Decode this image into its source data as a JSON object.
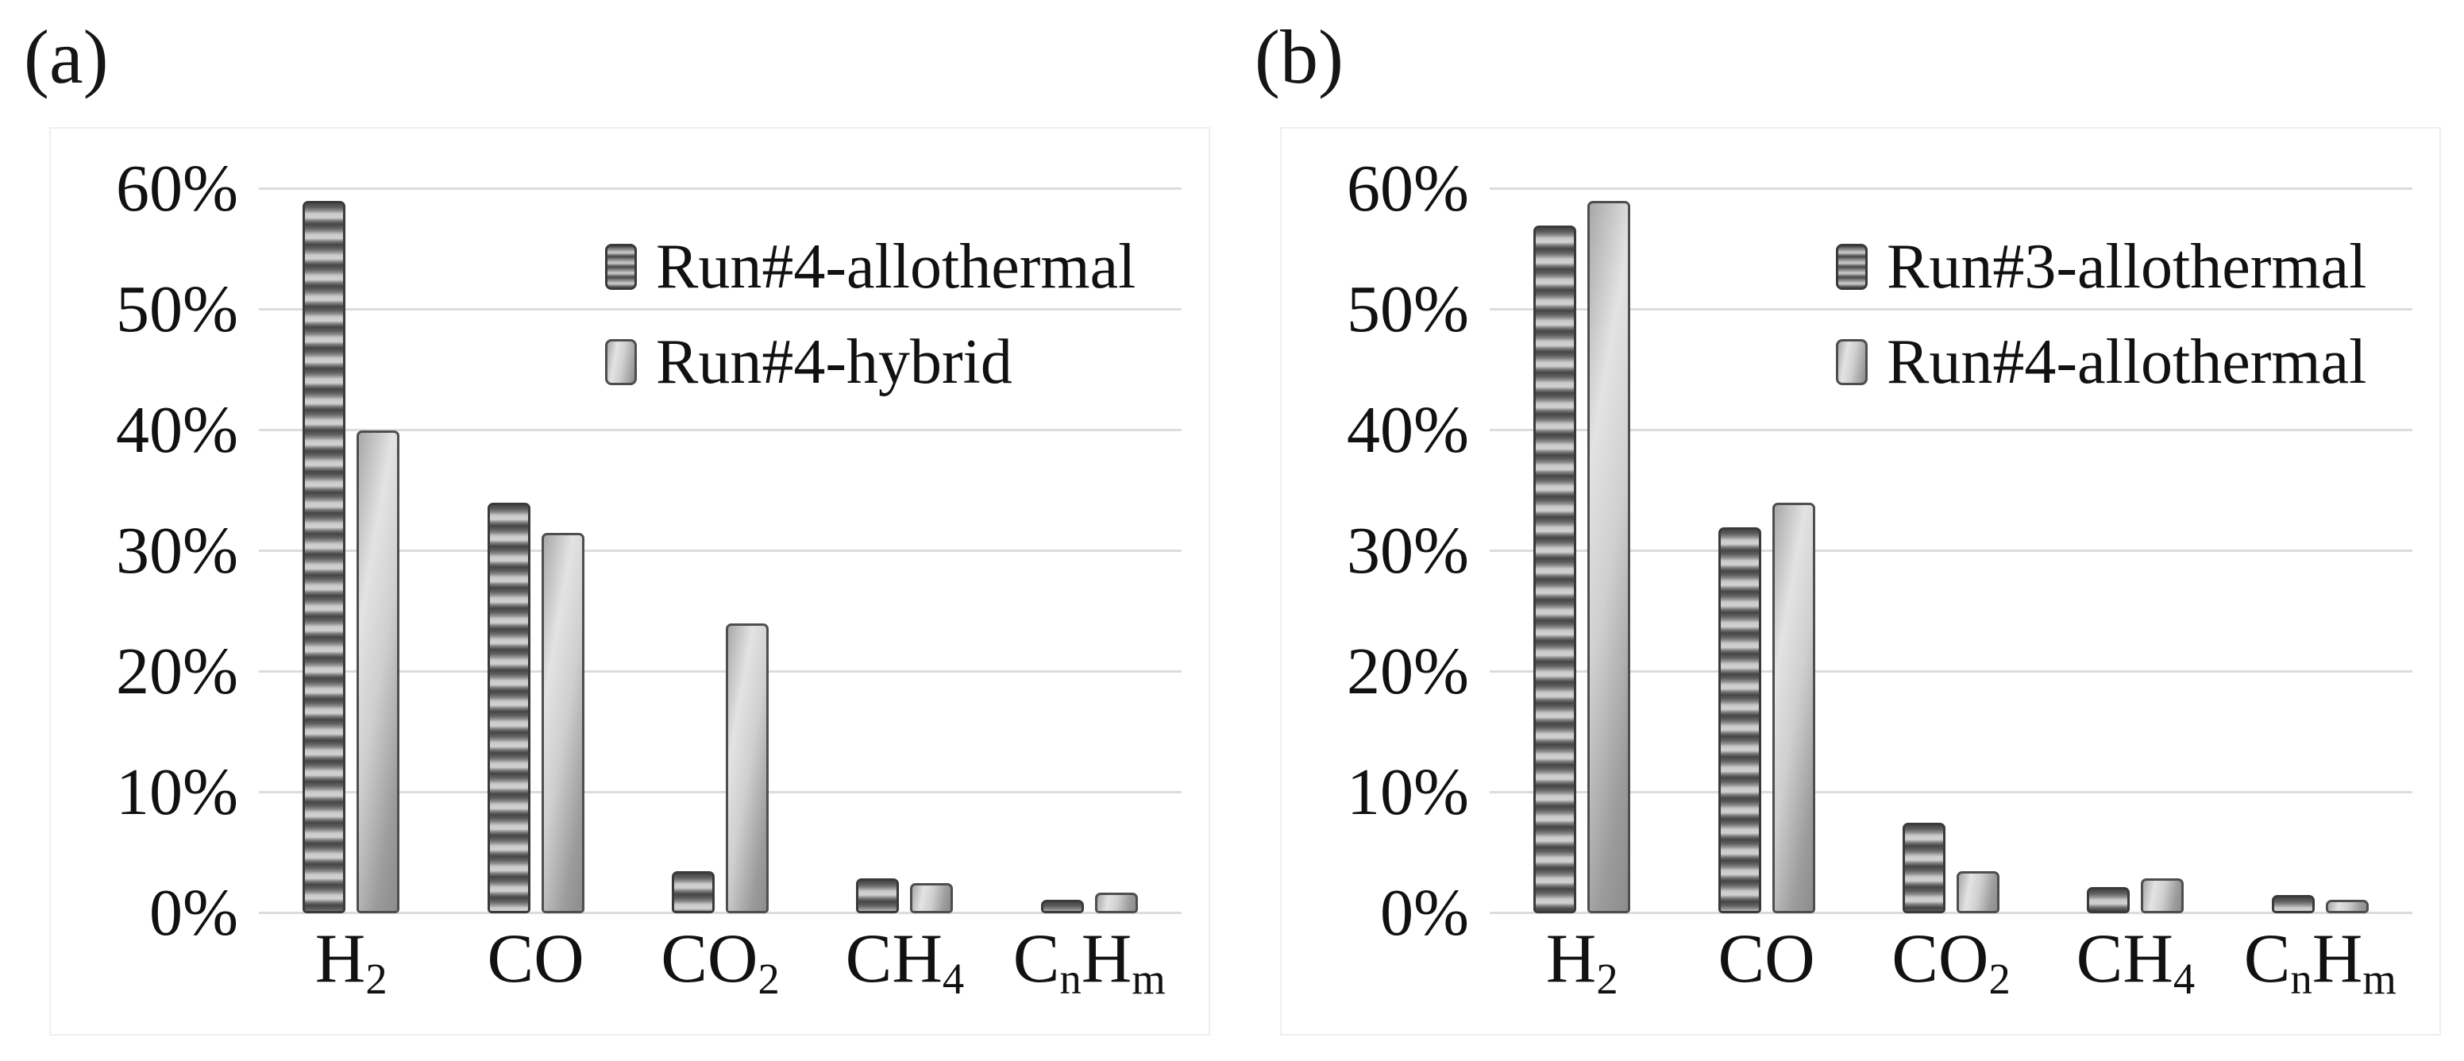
{
  "figure": {
    "background": "#ffffff",
    "text_color": "#111111",
    "gridline_color": "#dcdcdc"
  },
  "chart_data": [
    {
      "type": "bar",
      "panel_label": "(a)",
      "title": "",
      "xlabel": "",
      "ylabel": "",
      "ylim": [
        0,
        60
      ],
      "grid": true,
      "legend_position": "upper-right-inside",
      "y_ticks": [
        "0%",
        "10%",
        "20%",
        "30%",
        "40%",
        "50%",
        "60%"
      ],
      "categories": [
        {
          "name": "H2",
          "parts": [
            {
              "t": "H"
            },
            {
              "t": "2",
              "sub": true
            }
          ]
        },
        {
          "name": "CO",
          "parts": [
            {
              "t": "CO"
            }
          ]
        },
        {
          "name": "CO2",
          "parts": [
            {
              "t": "CO"
            },
            {
              "t": "2",
              "sub": true
            }
          ]
        },
        {
          "name": "CH4",
          "parts": [
            {
              "t": "CH"
            },
            {
              "t": "4",
              "sub": true
            }
          ]
        },
        {
          "name": "CnHm",
          "parts": [
            {
              "t": "C"
            },
            {
              "t": "n",
              "sub": true
            },
            {
              "t": "H"
            },
            {
              "t": "m",
              "sub": true
            }
          ]
        }
      ],
      "series": [
        {
          "name": "Run#4-allothermal",
          "pattern": "horizontal-stripes",
          "values": [
            59,
            34,
            3.5,
            2.9,
            1.1
          ]
        },
        {
          "name": "Run#4-hybrid",
          "pattern": "smooth-gradient",
          "values": [
            40,
            31.5,
            24,
            2.5,
            1.7
          ]
        }
      ]
    },
    {
      "type": "bar",
      "panel_label": "(b)",
      "title": "",
      "xlabel": "",
      "ylabel": "",
      "ylim": [
        0,
        60
      ],
      "grid": true,
      "legend_position": "upper-right-inside",
      "y_ticks": [
        "0%",
        "10%",
        "20%",
        "30%",
        "40%",
        "50%",
        "60%"
      ],
      "categories": [
        {
          "name": "H2",
          "parts": [
            {
              "t": "H"
            },
            {
              "t": "2",
              "sub": true
            }
          ]
        },
        {
          "name": "CO",
          "parts": [
            {
              "t": "CO"
            }
          ]
        },
        {
          "name": "CO2",
          "parts": [
            {
              "t": "CO"
            },
            {
              "t": "2",
              "sub": true
            }
          ]
        },
        {
          "name": "CH4",
          "parts": [
            {
              "t": "CH"
            },
            {
              "t": "4",
              "sub": true
            }
          ]
        },
        {
          "name": "CnHm",
          "parts": [
            {
              "t": "C"
            },
            {
              "t": "n",
              "sub": true
            },
            {
              "t": "H"
            },
            {
              "t": "m",
              "sub": true
            }
          ]
        }
      ],
      "series": [
        {
          "name": "Run#3-allothermal",
          "pattern": "horizontal-stripes",
          "values": [
            57,
            32,
            7.5,
            2.2,
            1.5
          ]
        },
        {
          "name": "Run#4-allothermal",
          "pattern": "smooth-gradient",
          "values": [
            59,
            34,
            3.5,
            2.9,
            1.1
          ]
        }
      ]
    }
  ]
}
